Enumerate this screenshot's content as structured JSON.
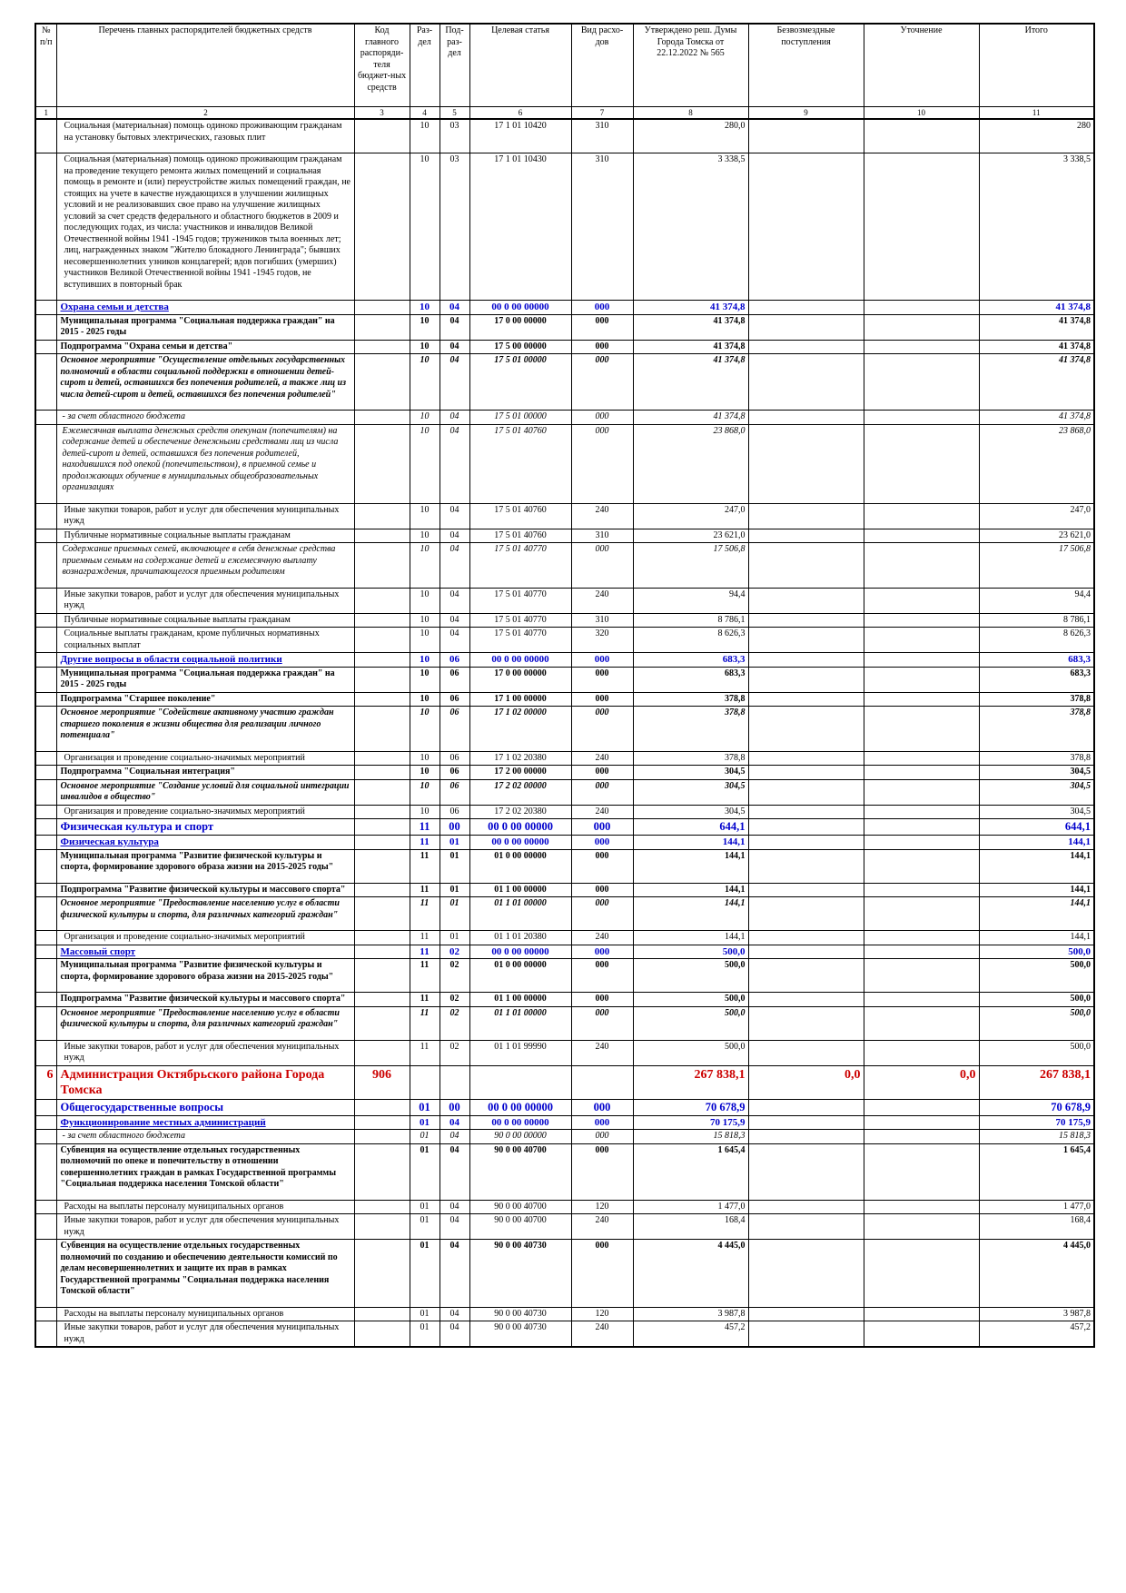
{
  "table": {
    "header": [
      "№ п/п",
      "Перечень главных распорядителей бюджетных средств",
      "Код главного распоряди-теля бюджет-ных средств",
      "Раз-дел",
      "Под-раз-дел",
      "Целевая статья",
      "Вид расхо-дов",
      "Утверждено реш. Думы Города Томска от 22.12.2022 № 565",
      "Безвозмездные поступления",
      "Уточнение",
      "Итого"
    ],
    "numbers": [
      1,
      2,
      3,
      4,
      5,
      6,
      7,
      8,
      9,
      10,
      11
    ],
    "rows": [
      {
        "style": "normal",
        "cells": [
          null,
          "Социальная (материальная) помощь одиноко проживающим гражданам на установку бытовых электрических, газовых плит",
          null,
          "10",
          "03",
          "17 1 01 10420",
          "310",
          "280,0",
          null,
          null,
          "280"
        ]
      },
      {
        "style": "normal",
        "cells": [
          null,
          "Социальная (материальная) помощь одиноко проживающим гражданам на проведение текущего ремонта жилых помещений и социальная помощь в ремонте и (или) переустройстве жилых помещений граждан, не стоящих на учете в качестве нуждающихся в улучшении жилищных условий и не реализовавших свое право на улучшение жилищных условий за счет средств федерального и областного бюджетов в 2009 и последующих годах, из числа: участников и инвалидов Великой Отечественной войны 1941 -1945 годов; тружеников тыла военных лет; лиц, награжденных знаком \"Жителю блокадного Ленинграда\"; бывших несовершеннолетних узников концлагерей; вдов погибших (умерших) участников Великой Отечественной войны 1941 -1945 годов, не вступивших в повторный брак",
          null,
          "10",
          "03",
          "17 1 01 10430",
          "310",
          "3 338,5",
          null,
          null,
          "3 338,5"
        ]
      },
      {
        "style": "section",
        "cells": [
          null,
          "Охрана семьи и детства",
          null,
          "10",
          "04",
          "00 0 00 00000",
          "000",
          "41 374,8",
          null,
          null,
          "41 374,8"
        ]
      },
      {
        "style": "bold",
        "cells": [
          null,
          "Муниципальная программа \"Социальная поддержка граждан\" на 2015 - 2025 годы",
          null,
          "10",
          "04",
          "17 0 00 00000",
          "000",
          "41 374,8",
          null,
          null,
          "41 374,8"
        ]
      },
      {
        "style": "bold",
        "cells": [
          null,
          "Подпрограмма \"Охрана семьи и детства\"",
          null,
          "10",
          "04",
          "17 5 00 00000",
          "000",
          "41 374,8",
          null,
          null,
          "41 374,8"
        ]
      },
      {
        "style": "bolditalic",
        "cells": [
          null,
          "Основное мероприятие \"Осуществление отдельных государственных полномочий в области социальной поддержки в отношении детей-сирот и детей, оставшихся без попечения родителей, а также лиц из числа детей-сирот и детей, оставшихся без попечения родителей\"",
          null,
          "10",
          "04",
          "17 5 01 00000",
          "000",
          "41 374,8",
          null,
          null,
          "41 374,8"
        ]
      },
      {
        "style": "italic",
        "cells": [
          null,
          "- за счет областного бюджета",
          null,
          "10",
          "04",
          "17 5 01 00000",
          "000",
          "41 374,8",
          null,
          null,
          "41 374,8"
        ]
      },
      {
        "style": "italic",
        "cells": [
          null,
          "Ежемесячная выплата денежных средств опекунам (попечителям) на содержание детей и обеспечение денежными средствами лиц из числа детей-сирот и детей, оставшихся без попечения родителей, находившихся под опекой (попечительством), в приемной семье и продолжающих обучение в муниципальных общеобразовательных организациях",
          null,
          "10",
          "04",
          "17 5 01 40760",
          "000",
          "23 868,0",
          null,
          null,
          "23 868,0"
        ]
      },
      {
        "style": "normal",
        "cells": [
          null,
          "Иные закупки товаров, работ и услуг для обеспечения муниципальных нужд",
          null,
          "10",
          "04",
          "17 5 01 40760",
          "240",
          "247,0",
          null,
          null,
          "247,0"
        ]
      },
      {
        "style": "normal",
        "cells": [
          null,
          "Публичные нормативные социальные выплаты гражданам",
          null,
          "10",
          "04",
          "17 5 01 40760",
          "310",
          "23 621,0",
          null,
          null,
          "23 621,0"
        ]
      },
      {
        "style": "italic",
        "cells": [
          null,
          "Содержание приемных семей, включающее в себя денежные средства приемным семьям на содержание детей и ежемесячную выплату вознаграждения, причитающегося приемным родителям",
          null,
          "10",
          "04",
          "17 5 01 40770",
          "000",
          "17 506,8",
          null,
          null,
          "17 506,8"
        ]
      },
      {
        "style": "normal",
        "cells": [
          null,
          "Иные закупки товаров, работ и услуг для обеспечения муниципальных нужд",
          null,
          "10",
          "04",
          "17 5 01 40770",
          "240",
          "94,4",
          null,
          null,
          "94,4"
        ]
      },
      {
        "style": "normal",
        "cells": [
          null,
          "Публичные нормативные социальные выплаты гражданам",
          null,
          "10",
          "04",
          "17 5 01 40770",
          "310",
          "8 786,1",
          null,
          null,
          "8 786,1"
        ]
      },
      {
        "style": "normal",
        "cells": [
          null,
          "Социальные выплаты гражданам, кроме публичных нормативных социальных выплат",
          null,
          "10",
          "04",
          "17 5 01 40770",
          "320",
          "8 626,3",
          null,
          null,
          "8 626,3"
        ]
      },
      {
        "style": "section",
        "cells": [
          null,
          "Другие вопросы в области социальной политики",
          null,
          "10",
          "06",
          "00 0 00 00000",
          "000",
          "683,3",
          null,
          null,
          "683,3"
        ]
      },
      {
        "style": "bold",
        "cells": [
          null,
          "Муниципальная программа \"Социальная поддержка граждан\" на 2015 - 2025 годы",
          null,
          "10",
          "06",
          "17 0 00 00000",
          "000",
          "683,3",
          null,
          null,
          "683,3"
        ]
      },
      {
        "style": "bold",
        "cells": [
          null,
          "Подпрограмма \"Старшее поколение\"",
          null,
          "10",
          "06",
          "17 1 00 00000",
          "000",
          "378,8",
          null,
          null,
          "378,8"
        ]
      },
      {
        "style": "bolditalic",
        "cells": [
          null,
          "Основное мероприятие \"Содействие активному участию граждан старшего поколения в жизни общества для реализации личного потенциала\"",
          null,
          "10",
          "06",
          "17 1 02 00000",
          "000",
          "378,8",
          null,
          null,
          "378,8"
        ]
      },
      {
        "style": "normal",
        "cells": [
          null,
          "Организация и проведение социально-значимых мероприятий",
          null,
          "10",
          "06",
          "17 1 02 20380",
          "240",
          "378,8",
          null,
          null,
          "378,8"
        ]
      },
      {
        "style": "bold",
        "cells": [
          null,
          "Подпрограмма \"Социальная интеграция\"",
          null,
          "10",
          "06",
          "17 2 00 00000",
          "000",
          "304,5",
          null,
          null,
          "304,5"
        ]
      },
      {
        "style": "bolditalic",
        "cells": [
          null,
          "Основное мероприятие \"Создание условий для социальной интеграции инвалидов в общество\"",
          null,
          "10",
          "06",
          "17 2 02 00000",
          "000",
          "304,5",
          null,
          null,
          "304,5"
        ]
      },
      {
        "style": "normal",
        "cells": [
          null,
          "Организация и проведение социально-значимых мероприятий",
          null,
          "10",
          "06",
          "17 2 02 20380",
          "240",
          "304,5",
          null,
          null,
          "304,5"
        ]
      },
      {
        "style": "section-big",
        "cells": [
          null,
          "Физическая культура и спорт",
          null,
          "11",
          "00",
          "00 0 00 00000",
          "000",
          "644,1",
          null,
          null,
          "644,1"
        ]
      },
      {
        "style": "section",
        "cells": [
          null,
          "Физическая культура",
          null,
          "11",
          "01",
          "00 0 00 00000",
          "000",
          "144,1",
          null,
          null,
          "144,1"
        ]
      },
      {
        "style": "bold",
        "cells": [
          null,
          "Муниципальная программа \"Развитие физической культуры и спорта, формирование здорового образа жизни на 2015-2025 годы\"",
          null,
          "11",
          "01",
          "01 0 00 00000",
          "000",
          "144,1",
          null,
          null,
          "144,1"
        ]
      },
      {
        "style": "bold",
        "cells": [
          null,
          "Подпрограмма \"Развитие физической культуры и массового спорта\"",
          null,
          "11",
          "01",
          "01 1 00 00000",
          "000",
          "144,1",
          null,
          null,
          "144,1"
        ]
      },
      {
        "style": "bolditalic",
        "cells": [
          null,
          "Основное мероприятие \"Предоставление населению услуг в области физической культуры и спорта, для различных категорий граждан\"",
          null,
          "11",
          "01",
          "01 1 01 00000",
          "000",
          "144,1",
          null,
          null,
          "144,1"
        ]
      },
      {
        "style": "normal",
        "cells": [
          null,
          "Организация и проведение социально-значимых мероприятий",
          null,
          "11",
          "01",
          "01 1 01 20380",
          "240",
          "144,1",
          null,
          null,
          "144,1"
        ]
      },
      {
        "style": "section",
        "cells": [
          null,
          "Массовый спорт",
          null,
          "11",
          "02",
          "00 0 00 00000",
          "000",
          "500,0",
          null,
          null,
          "500,0"
        ]
      },
      {
        "style": "bold",
        "cells": [
          null,
          "Муниципальная программа \"Развитие физической культуры и спорта, формирование здорового образа жизни на 2015-2025 годы\"",
          null,
          "11",
          "02",
          "01 0 00 00000",
          "000",
          "500,0",
          null,
          null,
          "500,0"
        ]
      },
      {
        "style": "bold",
        "cells": [
          null,
          "Подпрограмма \"Развитие физической культуры и массового спорта\"",
          null,
          "11",
          "02",
          "01 1 00 00000",
          "000",
          "500,0",
          null,
          null,
          "500,0"
        ]
      },
      {
        "style": "bolditalic",
        "cells": [
          null,
          "Основное мероприятие \"Предоставление населению услуг в области физической культуры и спорта, для различных категорий граждан\"",
          null,
          "11",
          "02",
          "01 1 01 00000",
          "000",
          "500,0",
          null,
          null,
          "500,0"
        ]
      },
      {
        "style": "normal",
        "cells": [
          null,
          "Иные закупки товаров, работ и услуг для обеспечения муниципальных нужд",
          null,
          "11",
          "02",
          "01 1 01 99990",
          "240",
          "500,0",
          null,
          null,
          "500,0"
        ]
      },
      {
        "style": "red",
        "cells": [
          "6",
          "Администрация Октябрьского района Города Томска",
          "906",
          null,
          null,
          null,
          null,
          "267 838,1",
          "0,0",
          "0,0",
          "267 838,1"
        ]
      },
      {
        "style": "section-big",
        "cells": [
          null,
          "Общегосударственные вопросы",
          null,
          "01",
          "00",
          "00 0 00 00000",
          "000",
          "70 678,9",
          null,
          null,
          "70 678,9"
        ]
      },
      {
        "style": "section",
        "cells": [
          null,
          "Функционирование местных администраций",
          null,
          "01",
          "04",
          "00 0 00 00000",
          "000",
          "70 175,9",
          null,
          null,
          "70 175,9"
        ]
      },
      {
        "style": "italic",
        "cells": [
          null,
          "- за счет областного бюджета",
          null,
          "01",
          "04",
          "90 0 00 00000",
          "000",
          "15 818,3",
          null,
          null,
          "15 818,3"
        ]
      },
      {
        "style": "bold",
        "cells": [
          null,
          "Субвенция на осуществление отдельных государственных полномочий по опеке и попечительству в отношении совершеннолетних граждан в рамках Государственной программы \"Социальная поддержка населения Томской области\"",
          null,
          "01",
          "04",
          "90 0 00 40700",
          "000",
          "1 645,4",
          null,
          null,
          "1 645,4"
        ]
      },
      {
        "style": "normal",
        "cells": [
          null,
          "Расходы на выплаты персоналу муниципальных органов",
          null,
          "01",
          "04",
          "90 0 00 40700",
          "120",
          "1 477,0",
          null,
          null,
          "1 477,0"
        ]
      },
      {
        "style": "normal",
        "cells": [
          null,
          "Иные закупки товаров, работ и услуг для обеспечения муниципальных нужд",
          null,
          "01",
          "04",
          "90 0 00 40700",
          "240",
          "168,4",
          null,
          null,
          "168,4"
        ]
      },
      {
        "style": "bold",
        "cells": [
          null,
          "Субвенция на осуществление отдельных государственных полномочий по созданию и обеспечению деятельности комиссий по делам несовершеннолетних и защите их прав в рамках Государственной программы \"Социальная поддержка населения Томской области\"",
          null,
          "01",
          "04",
          "90 0 00 40730",
          "000",
          "4 445,0",
          null,
          null,
          "4 445,0"
        ]
      },
      {
        "style": "normal",
        "cells": [
          null,
          "Расходы на выплаты персоналу муниципальных органов",
          null,
          "01",
          "04",
          "90 0 00 40730",
          "120",
          "3 987,8",
          null,
          null,
          "3 987,8"
        ]
      },
      {
        "style": "normal",
        "cells": [
          null,
          "Иные закупки товаров, работ и услуг для обеспечения муниципальных нужд",
          null,
          "01",
          "04",
          "90 0 00 40730",
          "240",
          "457,2",
          null,
          null,
          "457,2"
        ]
      }
    ]
  }
}
